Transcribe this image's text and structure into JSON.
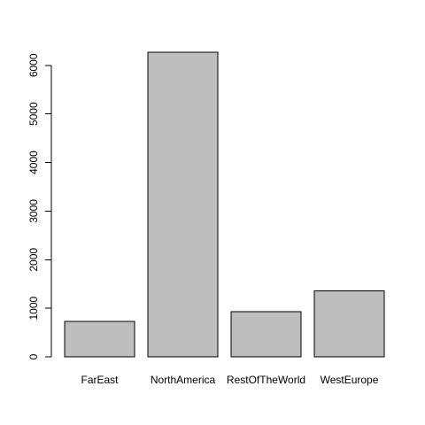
{
  "chart_data": {
    "type": "bar",
    "categories": [
      "FarEast",
      "NorthAmerica",
      "RestOfTheWorld",
      "WestEurope"
    ],
    "values": [
      730,
      6270,
      930,
      1360
    ],
    "y_ticks": [
      0,
      1000,
      2000,
      3000,
      4000,
      5000,
      6000
    ],
    "y_tick_labels": [
      "0",
      "1000",
      "2000",
      "3000",
      "4000",
      "5000",
      "6000"
    ],
    "ylim": [
      0,
      6270
    ],
    "grid": false,
    "legend": "none",
    "colors": {
      "bar_fill": "#bebebe",
      "bar_stroke": "#000000",
      "axis": "#000000",
      "background": "#ffffff"
    }
  }
}
